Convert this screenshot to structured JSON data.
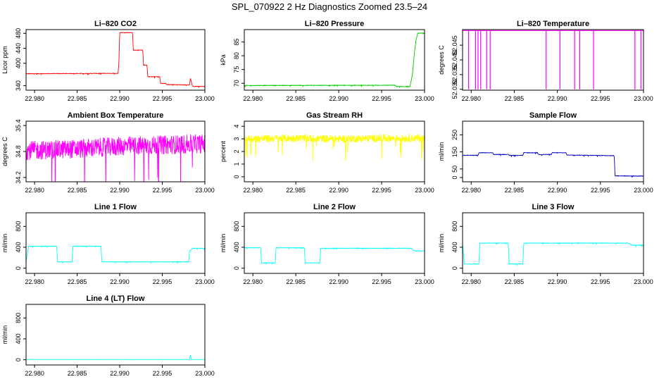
{
  "figure": {
    "title": "SPL_070922  2 Hz Diagnostics Zoomed 23.5–24"
  },
  "chart_data": [
    {
      "type": "line",
      "title": "Li–820 CO2",
      "ylabel": "Licor ppm",
      "xlim": [
        22.979,
        23.0
      ],
      "ylim": [
        328,
        490
      ],
      "xticks": [
        "22.980",
        "22.985",
        "22.990",
        "22.995",
        "23.000"
      ],
      "yticks": [
        340,
        400,
        440,
        480
      ],
      "series": [
        {
          "color": "#ff0000",
          "noise": 0.6,
          "x": [
            22.979,
            22.9898,
            22.9899,
            22.99,
            22.9915,
            22.9916,
            22.9927,
            22.9928,
            22.9932,
            22.9933,
            22.9947,
            22.9948,
            22.9954,
            22.9955,
            22.9982,
            22.9983,
            22.9985,
            22.9986,
            23.0
          ],
          "y": [
            372,
            373,
            400,
            482,
            482,
            435,
            435,
            395,
            395,
            364,
            364,
            346,
            346,
            343,
            342,
            360,
            342,
            338,
            338
          ]
        }
      ]
    },
    {
      "type": "line",
      "title": "Li–820 Pressure",
      "ylabel": "kPa",
      "xlim": [
        22.979,
        23.0
      ],
      "ylim": [
        67.5,
        89.5
      ],
      "xticks": [
        "22.980",
        "22.985",
        "22.990",
        "22.995",
        "23.000"
      ],
      "yticks": [
        70,
        75,
        80,
        85
      ],
      "series": [
        {
          "color": "#00cc00",
          "noise": 0.1,
          "x": [
            22.979,
            22.9966,
            22.9967,
            22.9983,
            22.9986,
            22.9988,
            22.999,
            22.9992,
            23.0
          ],
          "y": [
            69.2,
            69.3,
            68.8,
            68.8,
            73.5,
            80.5,
            85.5,
            88.2,
            88.2
          ]
        }
      ]
    },
    {
      "type": "line",
      "title": "Li–820 Temperature",
      "ylabel": "degrees C",
      "xlim": [
        22.979,
        23.0
      ],
      "ylim": [
        52.0297,
        52.0503
      ],
      "xticks": [
        "22.980",
        "22.985",
        "22.990",
        "22.995",
        "23.000"
      ],
      "yticks": [
        52.03,
        52.035,
        52.04,
        52.045
      ],
      "ytickLabels": [
        "52.030",
        "52.035",
        "52.040",
        "52.045"
      ],
      "series": [
        {
          "color": "#ff00ff",
          "noise": 0,
          "x": [
            22.979,
            22.9797,
            22.9797,
            22.9797,
            22.9805,
            22.9805,
            22.9805,
            22.9808,
            22.9808,
            22.9808,
            22.9811,
            22.9811,
            22.9811,
            22.9818,
            22.9818,
            22.9818,
            22.9822,
            22.9822,
            22.9822,
            22.9887,
            22.9887,
            22.9887,
            22.9903,
            22.9903,
            22.9903,
            22.992,
            22.992,
            22.992,
            22.9926,
            22.9926,
            22.9926,
            22.9942,
            22.9942,
            22.9942,
            22.999,
            22.999,
            22.999,
            22.9997,
            22.9997,
            22.9997,
            23.0
          ],
          "y": [
            52.05,
            52.05,
            52.03,
            52.05,
            52.05,
            52.03,
            52.05,
            52.05,
            52.03,
            52.05,
            52.05,
            52.03,
            52.05,
            52.05,
            52.03,
            52.05,
            52.05,
            52.03,
            52.05,
            52.05,
            52.03,
            52.05,
            52.05,
            52.03,
            52.05,
            52.05,
            52.03,
            52.05,
            52.05,
            52.03,
            52.05,
            52.05,
            52.03,
            52.05,
            52.05,
            52.03,
            52.05,
            52.05,
            52.03,
            52.05,
            52.05
          ]
        }
      ]
    },
    {
      "type": "line",
      "title": "Ambient Box Temperature",
      "ylabel": "degrees C",
      "xlim": [
        22.979,
        23.0
      ],
      "ylim": [
        34.1,
        35.5
      ],
      "xticks": [
        "22.980",
        "22.985",
        "22.990",
        "22.995",
        "23.000"
      ],
      "yticks": [
        34.2,
        34.8,
        35.4
      ],
      "series": [
        {
          "color": "#ff00ff",
          "noise": 0.22,
          "x": [
            22.979,
            22.985,
            22.99,
            22.995,
            23.0
          ],
          "y": [
            34.82,
            34.86,
            34.92,
            34.95,
            34.98
          ]
        }
      ]
    },
    {
      "type": "line",
      "title": "Gas Stream RH",
      "ylabel": "percent",
      "xlim": [
        22.979,
        23.0
      ],
      "ylim": [
        -0.4,
        4.4
      ],
      "xticks": [
        "22.980",
        "22.985",
        "22.990",
        "22.995",
        "23.000"
      ],
      "yticks": [
        0,
        1,
        2,
        3,
        4
      ],
      "series": [
        {
          "color": "#ffff00",
          "noise": 0.3,
          "x": [
            22.979,
            22.985,
            22.99,
            22.995,
            23.0
          ],
          "y": [
            3.0,
            3.05,
            3.0,
            3.05,
            3.05
          ]
        }
      ]
    },
    {
      "type": "line",
      "title": "Sample Flow",
      "ylabel": "ml/min",
      "xlim": [
        22.979,
        23.0
      ],
      "ylim": [
        -25,
        330
      ],
      "xticks": [
        "22.980",
        "22.985",
        "22.990",
        "22.995",
        "23.000"
      ],
      "yticks": [
        0,
        50,
        150,
        250
      ],
      "series": [
        {
          "color": "#0000bb",
          "noise": 1.5,
          "x": [
            22.979,
            22.9808,
            22.9809,
            22.9825,
            22.9826,
            22.9843,
            22.9844,
            22.986,
            22.9861,
            22.9877,
            22.9878,
            22.9893,
            22.9894,
            22.991,
            22.9911,
            22.9966,
            22.9967,
            23.0
          ],
          "y": [
            130,
            130,
            145,
            145,
            135,
            135,
            130,
            130,
            145,
            145,
            135,
            135,
            145,
            145,
            132,
            128,
            10,
            8
          ]
        }
      ]
    },
    {
      "type": "line",
      "title": "Line 1 Flow",
      "ylabel": "ml/min",
      "xlim": [
        22.979,
        23.0
      ],
      "ylim": [
        -100,
        1060
      ],
      "xticks": [
        "22.980",
        "22.985",
        "22.990",
        "22.995",
        "23.000"
      ],
      "yticks": [
        0,
        400,
        800
      ],
      "series": [
        {
          "color": "#00ffff",
          "noise": 5,
          "x": [
            22.979,
            22.9793,
            22.9794,
            22.9826,
            22.9827,
            22.9844,
            22.9845,
            22.9878,
            22.9879,
            22.9981,
            22.9982,
            22.9986,
            23.0
          ],
          "y": [
            120,
            420,
            420,
            420,
            120,
            120,
            420,
            420,
            120,
            120,
            330,
            380,
            380
          ]
        }
      ]
    },
    {
      "type": "line",
      "title": "Line 2 Flow",
      "ylabel": "ml/min",
      "xlim": [
        22.979,
        23.0
      ],
      "ylim": [
        -100,
        1060
      ],
      "xticks": [
        "22.980",
        "22.985",
        "22.990",
        "22.995",
        "23.000"
      ],
      "yticks": [
        0,
        400,
        800
      ],
      "series": [
        {
          "color": "#00ffff",
          "noise": 5,
          "x": [
            22.979,
            22.9809,
            22.981,
            22.9826,
            22.9827,
            22.986,
            22.9861,
            22.9878,
            22.9879,
            22.9984,
            22.9988,
            23.0
          ],
          "y": [
            390,
            390,
            100,
            100,
            390,
            390,
            100,
            100,
            380,
            380,
            330,
            330
          ]
        }
      ]
    },
    {
      "type": "line",
      "title": "Line 3 Flow",
      "ylabel": "ml/min",
      "xlim": [
        22.979,
        23.0
      ],
      "ylim": [
        -100,
        1060
      ],
      "xticks": [
        "22.980",
        "22.985",
        "22.990",
        "22.995",
        "23.000"
      ],
      "yticks": [
        0,
        400,
        800
      ],
      "series": [
        {
          "color": "#00ffff",
          "noise": 5,
          "x": [
            22.979,
            22.9792,
            22.9793,
            22.9809,
            22.981,
            22.9843,
            22.9844,
            22.986,
            22.9861,
            22.9982,
            22.9987,
            23.0
          ],
          "y": [
            490,
            80,
            80,
            80,
            480,
            480,
            80,
            80,
            480,
            480,
            440,
            440
          ]
        }
      ]
    },
    {
      "type": "line",
      "title": "Line 4 (LT) Flow",
      "ylabel": "ml/min",
      "xlim": [
        22.979,
        23.0
      ],
      "ylim": [
        -100,
        1060
      ],
      "xticks": [
        "22.980",
        "22.985",
        "22.990",
        "22.995",
        "23.000"
      ],
      "yticks": [
        0,
        400,
        800
      ],
      "series": [
        {
          "color": "#00ffff",
          "noise": 1,
          "x": [
            22.979,
            22.9982,
            22.9983,
            22.9984,
            23.0
          ],
          "y": [
            5,
            5,
            90,
            5,
            5
          ]
        }
      ]
    }
  ]
}
